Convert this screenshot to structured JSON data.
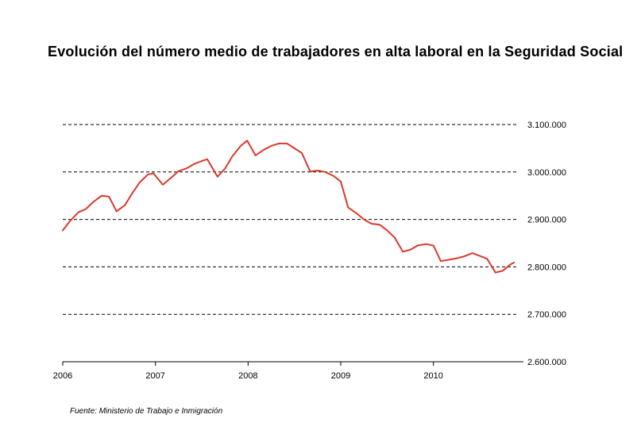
{
  "chart_data": {
    "type": "line",
    "title": "Evolución del número medio de trabajadores en alta laboral en la Seguridad Social",
    "xlabel": "",
    "ylabel": "",
    "x_ticks": [
      "2006",
      "2007",
      "2008",
      "2009",
      "2010"
    ],
    "y_ticks": [
      "3.100.000",
      "3.000.000",
      "2.900.000",
      "2.800.000",
      "2.700.000",
      "2.600.000"
    ],
    "ylim": [
      2600000,
      3100000
    ],
    "xlim": [
      2006.0,
      2010.92
    ],
    "grid": "horizontal dashed",
    "y_axis_side": "right",
    "series": [
      {
        "color": "#d9392c",
        "points": [
          [
            2006.0,
            2877000
          ],
          [
            2006.08,
            2897000
          ],
          [
            2006.17,
            2915000
          ],
          [
            2006.25,
            2922000
          ],
          [
            2006.33,
            2937000
          ],
          [
            2006.42,
            2950000
          ],
          [
            2006.5,
            2948000
          ],
          [
            2006.58,
            2917000
          ],
          [
            2006.67,
            2930000
          ],
          [
            2006.75,
            2955000
          ],
          [
            2006.83,
            2978000
          ],
          [
            2006.92,
            2995000
          ],
          [
            2006.98,
            2997000
          ],
          [
            2007.08,
            2973000
          ],
          [
            2007.17,
            2988000
          ],
          [
            2007.25,
            3002000
          ],
          [
            2007.33,
            3007000
          ],
          [
            2007.42,
            3017000
          ],
          [
            2007.5,
            3023000
          ],
          [
            2007.56,
            3027000
          ],
          [
            2007.67,
            2990000
          ],
          [
            2007.75,
            3007000
          ],
          [
            2007.83,
            3033000
          ],
          [
            2007.92,
            3055000
          ],
          [
            2007.99,
            3066000
          ],
          [
            2008.08,
            3035000
          ],
          [
            2008.17,
            3047000
          ],
          [
            2008.25,
            3055000
          ],
          [
            2008.33,
            3060000
          ],
          [
            2008.42,
            3060000
          ],
          [
            2008.5,
            3050000
          ],
          [
            2008.58,
            3040000
          ],
          [
            2008.67,
            3001000
          ],
          [
            2008.75,
            3003000
          ],
          [
            2008.83,
            3000000
          ],
          [
            2008.92,
            2992000
          ],
          [
            2009.0,
            2980000
          ],
          [
            2009.08,
            2925000
          ],
          [
            2009.17,
            2913000
          ],
          [
            2009.25,
            2900000
          ],
          [
            2009.33,
            2891000
          ],
          [
            2009.42,
            2889000
          ],
          [
            2009.5,
            2877000
          ],
          [
            2009.58,
            2862000
          ],
          [
            2009.67,
            2832000
          ],
          [
            2009.75,
            2836000
          ],
          [
            2009.83,
            2845000
          ],
          [
            2009.92,
            2848000
          ],
          [
            2010.0,
            2845000
          ],
          [
            2010.08,
            2812000
          ],
          [
            2010.17,
            2815000
          ],
          [
            2010.25,
            2818000
          ],
          [
            2010.33,
            2822000
          ],
          [
            2010.42,
            2829000
          ],
          [
            2010.5,
            2823000
          ],
          [
            2010.58,
            2817000
          ],
          [
            2010.67,
            2788000
          ],
          [
            2010.75,
            2792000
          ],
          [
            2010.83,
            2805000
          ],
          [
            2010.87,
            2809000
          ]
        ]
      }
    ]
  },
  "source": "Fuente: Ministerio de Trabajo e Inmigración"
}
